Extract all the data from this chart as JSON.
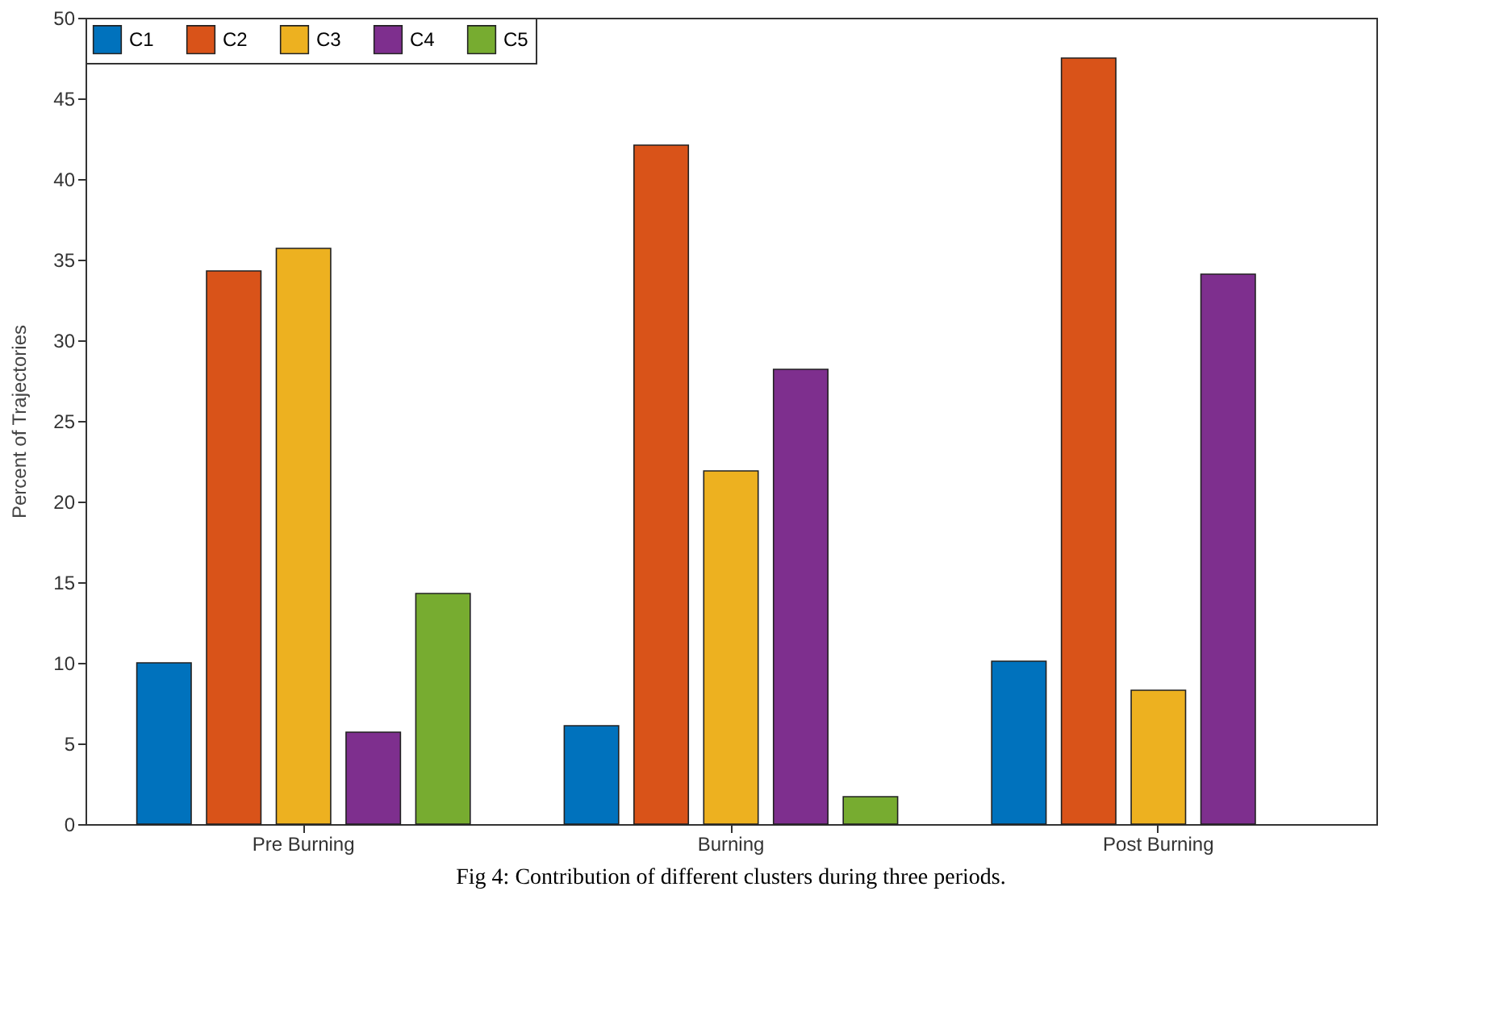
{
  "chart_data": {
    "type": "bar",
    "ylabel": "Percent of Trajectories",
    "categories": [
      "Pre Burning",
      "Burning",
      "Post Burning"
    ],
    "series": [
      {
        "name": "C1",
        "color": "#0072bd",
        "values": [
          10.0,
          6.1,
          10.1
        ]
      },
      {
        "name": "C2",
        "color": "#d95319",
        "values": [
          34.3,
          42.1,
          47.5
        ]
      },
      {
        "name": "C3",
        "color": "#edb120",
        "values": [
          35.7,
          21.9,
          8.3
        ]
      },
      {
        "name": "C4",
        "color": "#7e2f8e",
        "values": [
          5.7,
          28.2,
          34.1
        ]
      },
      {
        "name": "C5",
        "color": "#77ac30",
        "values": [
          14.3,
          1.7,
          null
        ]
      }
    ],
    "ylim": [
      0,
      50
    ],
    "yticks": [
      0,
      5,
      10,
      15,
      20,
      25,
      30,
      35,
      40,
      45,
      50
    ],
    "grid": false,
    "legend": "top",
    "annotations": [
      "Fig 4: Contribution of different clusters during three periods."
    ]
  }
}
